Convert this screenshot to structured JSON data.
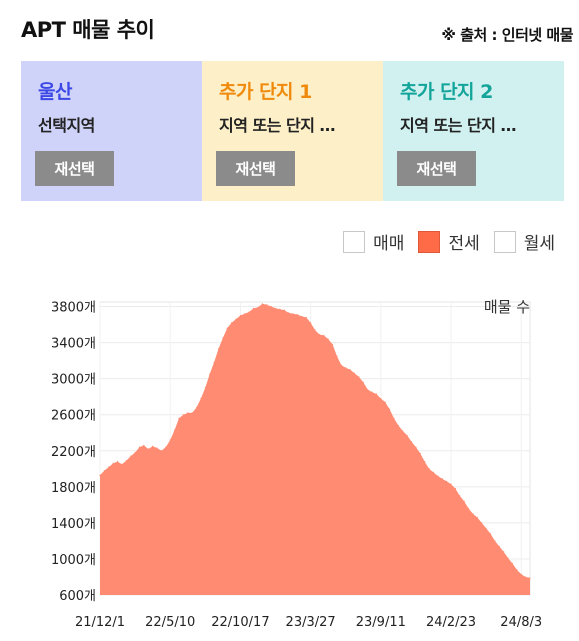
{
  "header": {
    "title": "APT 매물 추이",
    "source": "※ 출처 : 인터넷 매물"
  },
  "cards": [
    {
      "name": "울산",
      "sub": "선택지역",
      "button": "재선택"
    },
    {
      "name": "추가 단지 1",
      "sub": "지역 또는 단지 …",
      "button": "재선택"
    },
    {
      "name": "추가 단지 2",
      "sub": "지역 또는 단지 …",
      "button": "재선택"
    }
  ],
  "legend": [
    {
      "label": "매매",
      "checked": false
    },
    {
      "label": "전세",
      "checked": true
    },
    {
      "label": "월세",
      "checked": false
    }
  ],
  "colors": {
    "series": "#ff8c72",
    "checked": "#ff6a47"
  },
  "chart_data": {
    "type": "area",
    "ylabel": "매물 수",
    "ylim": [
      600,
      3850
    ],
    "yticks": [
      "3800개",
      "3400개",
      "3000개",
      "2600개",
      "2200개",
      "1800개",
      "1400개",
      "1000개",
      "600개"
    ],
    "ytick_values": [
      3800,
      3400,
      3000,
      2600,
      2200,
      1800,
      1400,
      1000,
      600
    ],
    "xticks": [
      "21/12/1",
      "22/5/10",
      "22/10/17",
      "23/3/27",
      "23/9/11",
      "24/2/23",
      "24/8/3"
    ],
    "xtick_index": [
      0,
      16,
      32,
      48,
      64,
      80,
      96
    ],
    "grid": true,
    "series": [
      {
        "name": "전세",
        "values": [
          1930,
          1980,
          2020,
          2060,
          2080,
          2050,
          2090,
          2140,
          2180,
          2240,
          2260,
          2220,
          2250,
          2230,
          2200,
          2240,
          2320,
          2430,
          2560,
          2600,
          2620,
          2620,
          2680,
          2780,
          2900,
          3050,
          3180,
          3330,
          3450,
          3560,
          3620,
          3660,
          3700,
          3720,
          3740,
          3780,
          3790,
          3830,
          3820,
          3800,
          3780,
          3770,
          3760,
          3730,
          3720,
          3710,
          3690,
          3680,
          3620,
          3540,
          3490,
          3480,
          3440,
          3380,
          3250,
          3150,
          3120,
          3100,
          3060,
          3020,
          2960,
          2880,
          2850,
          2830,
          2780,
          2740,
          2660,
          2560,
          2480,
          2420,
          2370,
          2300,
          2240,
          2170,
          2080,
          2000,
          1960,
          1920,
          1890,
          1860,
          1830,
          1780,
          1700,
          1640,
          1560,
          1500,
          1460,
          1400,
          1340,
          1280,
          1200,
          1140,
          1080,
          1010,
          950,
          880,
          830,
          800,
          790
        ]
      }
    ]
  }
}
